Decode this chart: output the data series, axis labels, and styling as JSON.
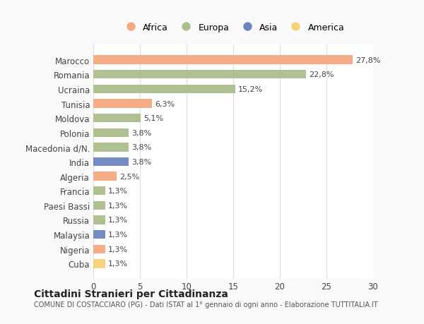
{
  "categories": [
    "Marocco",
    "Romania",
    "Ucraina",
    "Tunisia",
    "Moldova",
    "Polonia",
    "Macedonia d/N.",
    "India",
    "Algeria",
    "Francia",
    "Paesi Bassi",
    "Russia",
    "Malaysia",
    "Nigeria",
    "Cuba"
  ],
  "values": [
    27.8,
    22.8,
    15.2,
    6.3,
    5.1,
    3.8,
    3.8,
    3.8,
    2.5,
    1.3,
    1.3,
    1.3,
    1.3,
    1.3,
    1.3
  ],
  "labels": [
    "27,8%",
    "22,8%",
    "15,2%",
    "6,3%",
    "5,1%",
    "3,8%",
    "3,8%",
    "3,8%",
    "2,5%",
    "1,3%",
    "1,3%",
    "1,3%",
    "1,3%",
    "1,3%",
    "1,3%"
  ],
  "continents": [
    "Africa",
    "Europa",
    "Europa",
    "Africa",
    "Europa",
    "Europa",
    "Europa",
    "Asia",
    "Africa",
    "Europa",
    "Europa",
    "Europa",
    "Asia",
    "Africa",
    "America"
  ],
  "continent_colors": {
    "Africa": "#F4A97F",
    "Europa": "#ABBE8B",
    "Asia": "#6E86C0",
    "America": "#F5D178"
  },
  "legend_order": [
    "Africa",
    "Europa",
    "Asia",
    "America"
  ],
  "title": "Cittadini Stranieri per Cittadinanza",
  "subtitle": "COMUNE DI COSTACCIARO (PG) - Dati ISTAT al 1° gennaio di ogni anno - Elaborazione TUTTITALIA.IT",
  "xlim": [
    0,
    30
  ],
  "xticks": [
    0,
    5,
    10,
    15,
    20,
    25,
    30
  ],
  "background_color": "#f9f9f9",
  "bar_background_color": "#ffffff"
}
